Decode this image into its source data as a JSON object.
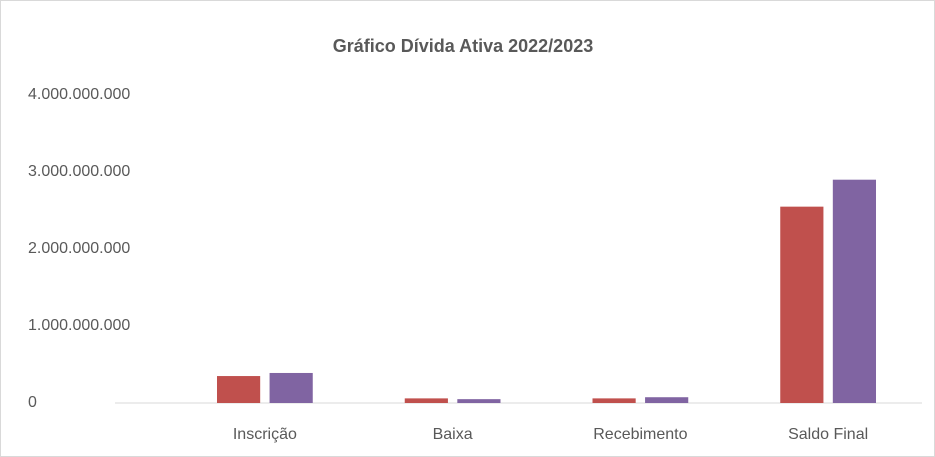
{
  "chart_data": {
    "type": "bar",
    "title": "Gráfico Dívida Ativa 2022/2023",
    "categories": [
      "Inscrição",
      "Baixa",
      "Recebimento",
      "Saldo Final"
    ],
    "series": [
      {
        "color": "#c0504d",
        "values": [
          350000000,
          60000000,
          60000000,
          2550000000
        ]
      },
      {
        "color": "#8064a2",
        "values": [
          390000000,
          50000000,
          75000000,
          2900000000
        ]
      }
    ],
    "ylim": [
      0,
      4000000000
    ],
    "yticks": [
      0,
      {
        "value": 1000000000,
        "label": "1.000.000.000"
      },
      {
        "value": 2000000000,
        "label": "2.000.000.000"
      },
      {
        "value": 3000000000,
        "label": "3.000.000.000"
      },
      {
        "value": 4000000000,
        "label": "4.000.000.000"
      }
    ],
    "grid": false
  }
}
